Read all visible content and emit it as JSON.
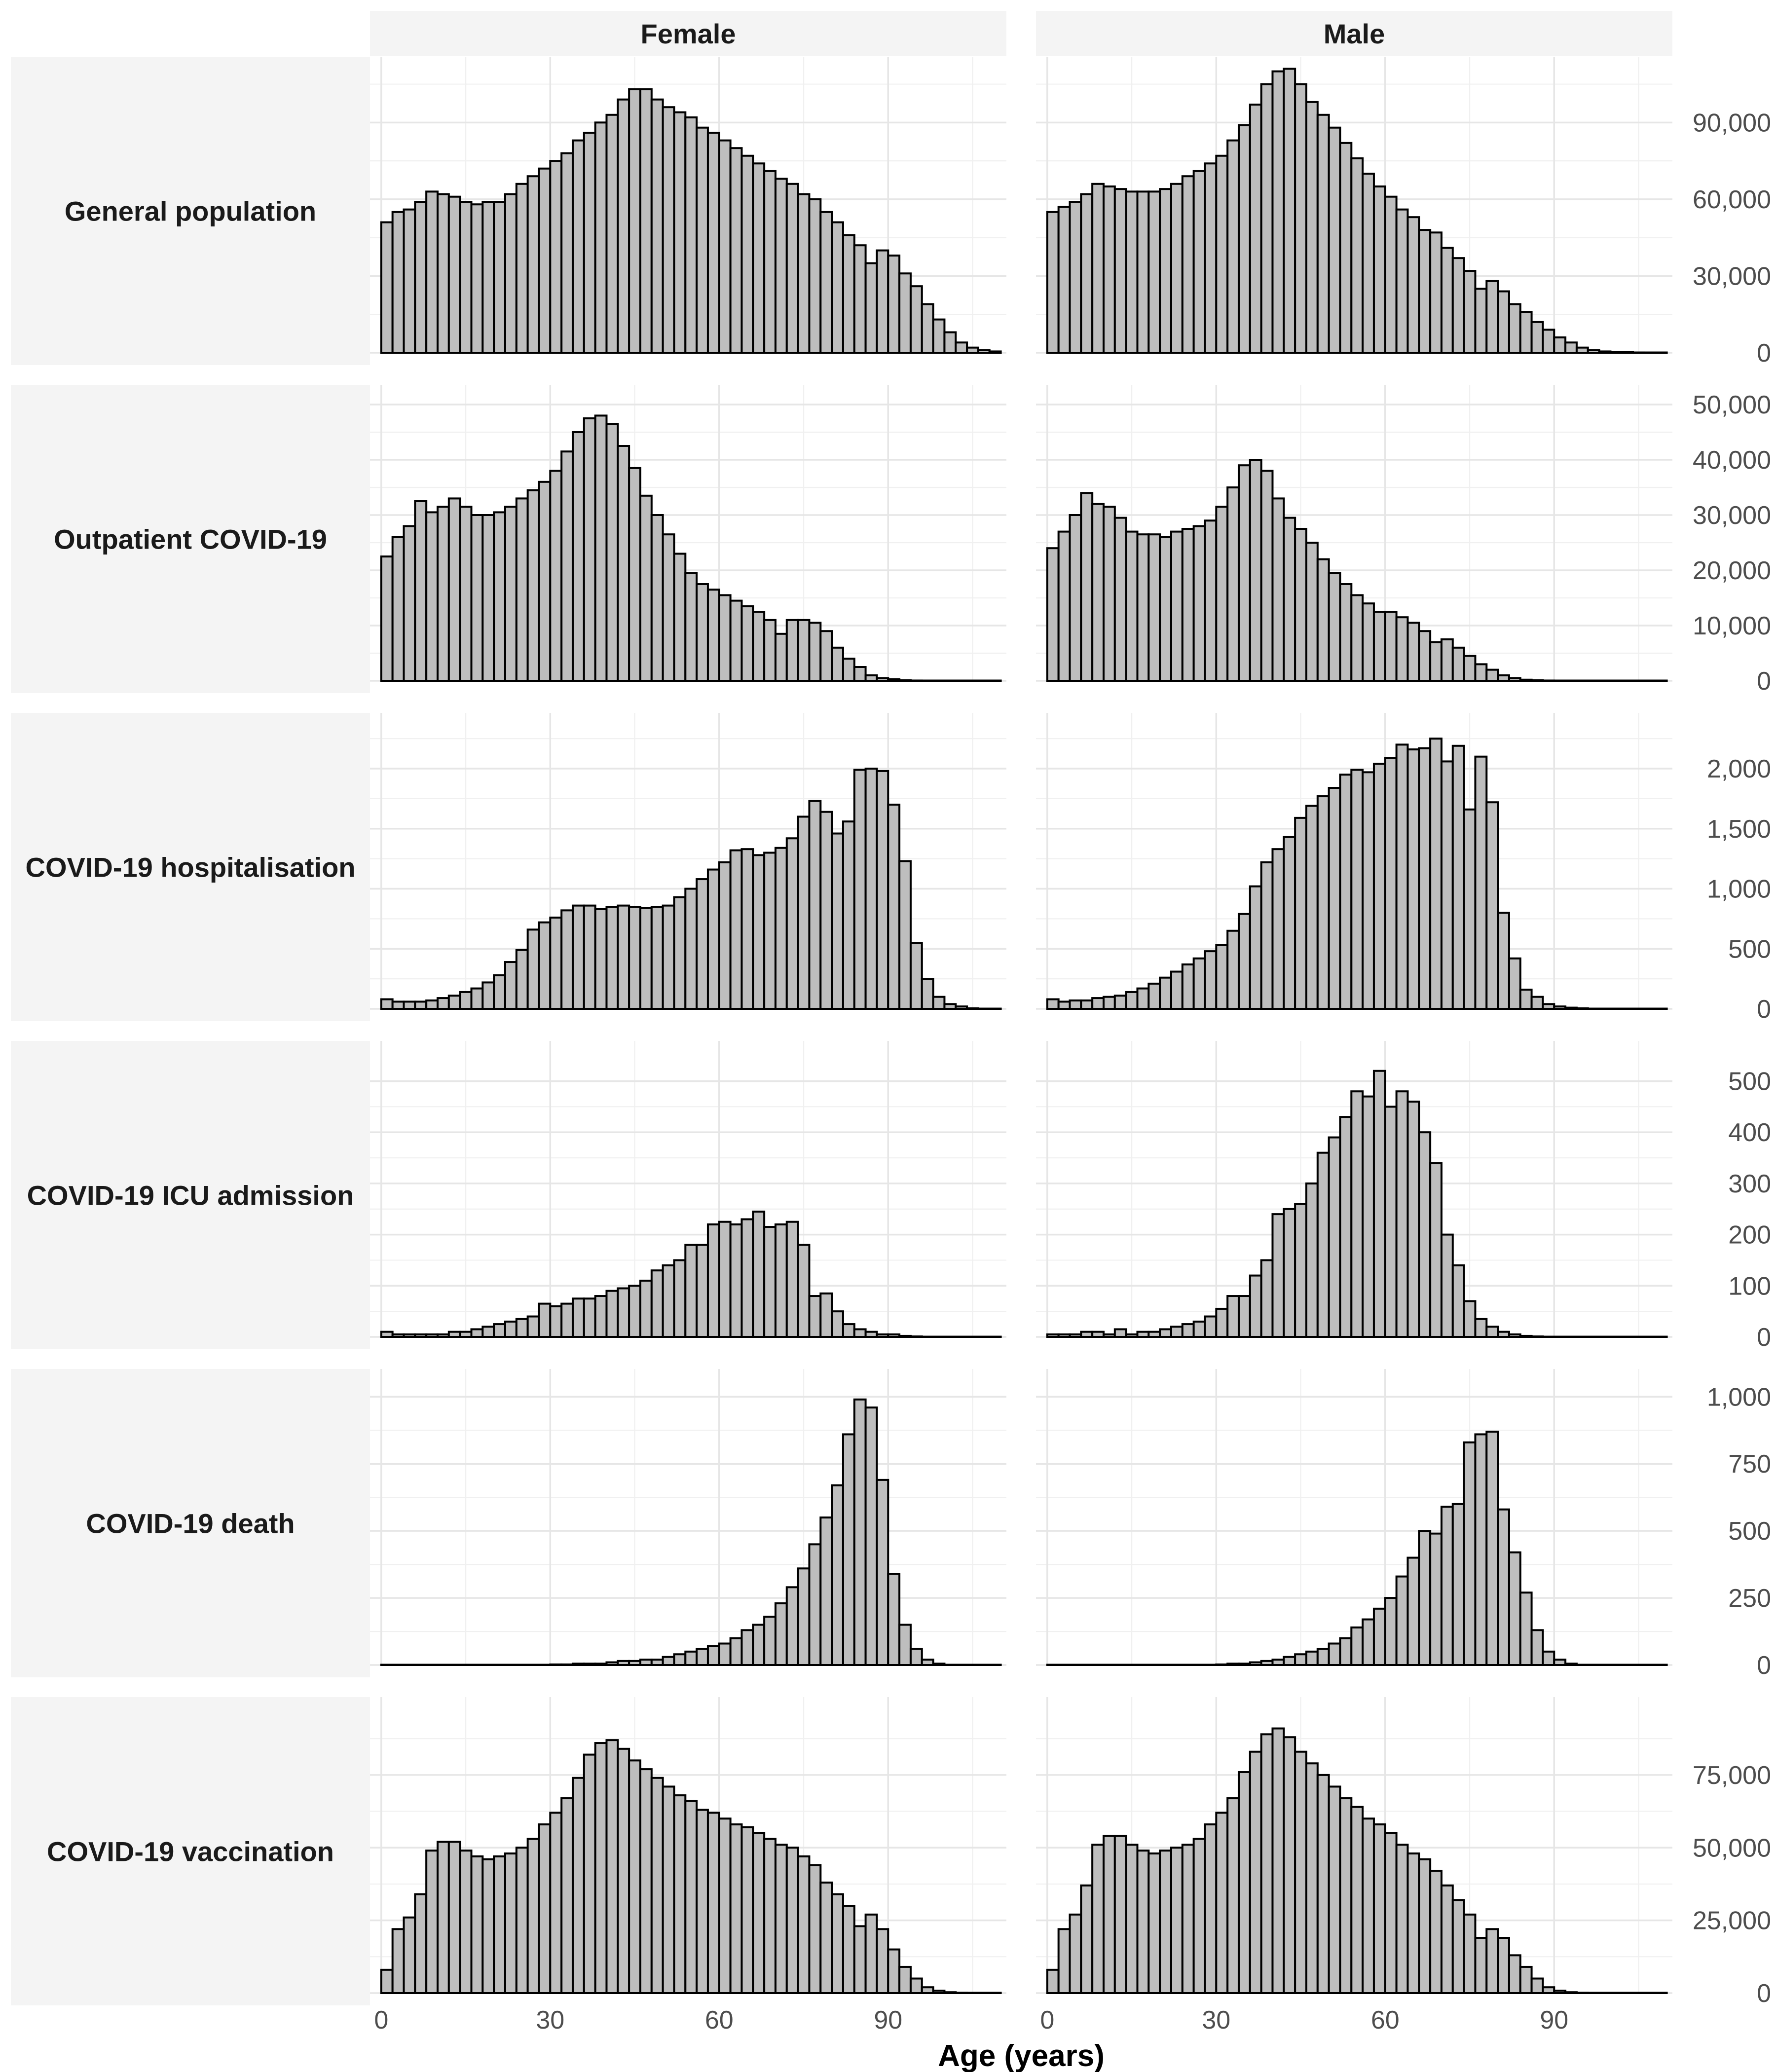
{
  "chart_data": {
    "type": "bar",
    "title": "",
    "xlabel": "Age (years)",
    "x_ticks": [
      0,
      30,
      60,
      90
    ],
    "xlim": [
      -2,
      111
    ],
    "bin_width": 2,
    "bin_starts": [
      0,
      2,
      4,
      6,
      8,
      10,
      12,
      14,
      16,
      18,
      20,
      22,
      24,
      26,
      28,
      30,
      32,
      34,
      36,
      38,
      40,
      42,
      44,
      46,
      48,
      50,
      52,
      54,
      56,
      58,
      60,
      62,
      64,
      66,
      68,
      70,
      72,
      74,
      76,
      78,
      80,
      82,
      84,
      86,
      88,
      90,
      92,
      94,
      96,
      98,
      100,
      102,
      104,
      106,
      108
    ],
    "columns": [
      "Female",
      "Male"
    ],
    "rows": [
      {
        "label": "General population",
        "ylim": [
          0,
          108000
        ],
        "y_ticks": [
          0,
          30000,
          60000,
          90000
        ],
        "y_tick_labels": [
          "0",
          "30,000",
          "60,000",
          "90,000"
        ],
        "series": [
          {
            "name": "Female",
            "values": [
              51000,
              55000,
              56000,
              59000,
              63000,
              62000,
              61000,
              59000,
              58000,
              59000,
              59000,
              62000,
              66000,
              69000,
              72000,
              75000,
              78000,
              83000,
              86000,
              90000,
              93000,
              99000,
              103000,
              103000,
              99000,
              96000,
              94000,
              92000,
              88000,
              86000,
              83000,
              80000,
              77000,
              74000,
              71000,
              68000,
              66000,
              62000,
              60000,
              55000,
              51000,
              46000,
              42000,
              35000,
              40000,
              38000,
              31000,
              26000,
              19000,
              13000,
              8000,
              4000,
              2000,
              1000,
              500
            ]
          },
          {
            "name": "Male",
            "values": [
              55000,
              57000,
              59000,
              62000,
              66000,
              65000,
              64000,
              63000,
              63000,
              63000,
              64000,
              66000,
              69000,
              71000,
              74000,
              77000,
              83000,
              89000,
              97000,
              105000,
              110000,
              111000,
              105000,
              98000,
              93000,
              88000,
              82000,
              76000,
              70000,
              65000,
              61000,
              56000,
              53000,
              48000,
              47000,
              41000,
              37000,
              32000,
              25000,
              28000,
              24000,
              19000,
              16000,
              12000,
              9000,
              6000,
              4000,
              2000,
              1000,
              500,
              300,
              200,
              100,
              50,
              20
            ]
          }
        ]
      },
      {
        "label": "Outpatient COVID-19",
        "ylim": [
          0,
          50000
        ],
        "y_ticks": [
          0,
          10000,
          20000,
          30000,
          40000,
          50000
        ],
        "y_tick_labels": [
          "0",
          "10,000",
          "20,000",
          "30,000",
          "40,000",
          "50,000"
        ],
        "series": [
          {
            "name": "Female",
            "values": [
              22500,
              26000,
              28000,
              32500,
              30500,
              31500,
              33000,
              31500,
              30000,
              30000,
              30500,
              31500,
              33000,
              34500,
              36000,
              38000,
              41500,
              45000,
              47500,
              48000,
              46500,
              42500,
              38500,
              33500,
              30000,
              26500,
              23000,
              19500,
              17500,
              16500,
              15500,
              14500,
              13500,
              12500,
              11000,
              8500,
              11000,
              11000,
              10500,
              9000,
              6000,
              4000,
              2500,
              1000,
              500,
              300,
              100,
              50,
              20,
              10,
              5,
              2,
              1,
              0,
              0
            ]
          },
          {
            "name": "Male",
            "values": [
              24000,
              27000,
              30000,
              34000,
              32000,
              31500,
              29500,
              27000,
              26500,
              26500,
              26000,
              27000,
              27500,
              28000,
              29000,
              31500,
              35000,
              39000,
              40000,
              38000,
              33000,
              29500,
              27500,
              25000,
              22000,
              19500,
              17500,
              15500,
              14000,
              12500,
              12500,
              11500,
              10500,
              9000,
              7000,
              7500,
              6000,
              4500,
              3000,
              2000,
              1000,
              500,
              200,
              100,
              50,
              20,
              10,
              5,
              2,
              1,
              0,
              0,
              0,
              0,
              0
            ]
          }
        ]
      },
      {
        "label": "COVID-19 hospitalisation",
        "ylim": [
          0,
          2300
        ],
        "y_ticks": [
          0,
          500,
          1000,
          1500,
          2000
        ],
        "y_tick_labels": [
          "0",
          "500",
          "1,000",
          "1,500",
          "2,000"
        ],
        "series": [
          {
            "name": "Female",
            "values": [
              80,
              60,
              60,
              60,
              70,
              90,
              110,
              140,
              170,
              220,
              280,
              390,
              490,
              660,
              720,
              760,
              820,
              860,
              860,
              830,
              850,
              860,
              850,
              840,
              850,
              860,
              930,
              1000,
              1080,
              1160,
              1220,
              1320,
              1330,
              1280,
              1300,
              1340,
              1420,
              1600,
              1730,
              1640,
              1460,
              1560,
              1990,
              2000,
              1980,
              1700,
              1230,
              550,
              250,
              100,
              40,
              20,
              5,
              0,
              0
            ]
          },
          {
            "name": "Male",
            "values": [
              80,
              60,
              70,
              70,
              90,
              100,
              110,
              140,
              170,
              210,
              260,
              310,
              370,
              420,
              480,
              530,
              650,
              790,
              1020,
              1220,
              1330,
              1430,
              1590,
              1690,
              1770,
              1840,
              1950,
              1990,
              1970,
              2040,
              2090,
              2200,
              2160,
              2170,
              2250,
              2060,
              2190,
              1660,
              2100,
              1720,
              800,
              420,
              160,
              100,
              40,
              20,
              10,
              5,
              2,
              0,
              0,
              0,
              0,
              0,
              0
            ]
          }
        ]
      },
      {
        "label": "COVID-19 ICU admission",
        "ylim": [
          0,
          540
        ],
        "y_ticks": [
          0,
          100,
          200,
          300,
          400,
          500
        ],
        "y_tick_labels": [
          "0",
          "100",
          "200",
          "300",
          "400",
          "500"
        ],
        "series": [
          {
            "name": "Female",
            "values": [
              10,
              5,
              5,
              5,
              5,
              5,
              10,
              10,
              15,
              20,
              25,
              30,
              35,
              40,
              65,
              60,
              65,
              75,
              75,
              80,
              90,
              95,
              100,
              110,
              130,
              140,
              150,
              180,
              180,
              220,
              225,
              220,
              230,
              245,
              215,
              220,
              225,
              180,
              80,
              85,
              50,
              25,
              15,
              10,
              5,
              5,
              2,
              1,
              0,
              0,
              0,
              0,
              0,
              0,
              0
            ]
          },
          {
            "name": "Male",
            "values": [
              5,
              5,
              5,
              10,
              10,
              5,
              15,
              5,
              10,
              10,
              15,
              20,
              25,
              30,
              40,
              55,
              80,
              80,
              120,
              150,
              240,
              250,
              260,
              300,
              360,
              390,
              430,
              480,
              470,
              520,
              450,
              480,
              460,
              400,
              340,
              200,
              140,
              70,
              35,
              20,
              10,
              5,
              2,
              1,
              0,
              0,
              0,
              0,
              0,
              0,
              0,
              0,
              0,
              0,
              0
            ]
          }
        ]
      },
      {
        "label": "COVID-19 death",
        "ylim": [
          0,
          1030
        ],
        "y_ticks": [
          0,
          250,
          500,
          750,
          1000
        ],
        "y_tick_labels": [
          "0",
          "250",
          "500",
          "750",
          "1,000"
        ],
        "series": [
          {
            "name": "Female",
            "values": [
              0,
              0,
              0,
              0,
              0,
              0,
              0,
              0,
              0,
              0,
              0,
              0,
              0,
              0,
              0,
              2,
              2,
              5,
              5,
              5,
              10,
              15,
              15,
              20,
              20,
              30,
              40,
              50,
              60,
              70,
              80,
              100,
              130,
              150,
              180,
              230,
              290,
              360,
              450,
              550,
              670,
              860,
              990,
              960,
              690,
              340,
              150,
              60,
              20,
              5,
              0,
              0,
              0,
              0,
              0
            ]
          },
          {
            "name": "Male",
            "values": [
              0,
              0,
              0,
              0,
              0,
              0,
              0,
              0,
              0,
              0,
              0,
              0,
              0,
              0,
              0,
              2,
              5,
              5,
              10,
              15,
              20,
              30,
              40,
              50,
              60,
              80,
              100,
              140,
              170,
              210,
              250,
              330,
              400,
              500,
              490,
              590,
              600,
              830,
              860,
              870,
              580,
              420,
              270,
              130,
              50,
              20,
              5,
              0,
              0,
              0,
              0,
              0,
              0,
              0,
              0
            ]
          }
        ]
      },
      {
        "label": "COVID-19 vaccination",
        "ylim": [
          0,
          95000
        ],
        "y_ticks": [
          0,
          25000,
          50000,
          75000
        ],
        "y_tick_labels": [
          "0",
          "25,000",
          "50,000",
          "75,000"
        ],
        "series": [
          {
            "name": "Female",
            "values": [
              8000,
              22000,
              26000,
              34000,
              49000,
              52000,
              52000,
              49000,
              47000,
              46000,
              47000,
              48000,
              50000,
              53000,
              58000,
              62000,
              67000,
              74000,
              82000,
              86000,
              87000,
              84000,
              80000,
              77000,
              74000,
              71000,
              68000,
              66000,
              63000,
              62000,
              60000,
              58000,
              57000,
              55000,
              53000,
              51000,
              50000,
              47000,
              44000,
              38000,
              34000,
              30000,
              23000,
              27000,
              22000,
              15000,
              9000,
              5000,
              2000,
              800,
              300,
              100,
              50,
              20,
              0
            ]
          },
          {
            "name": "Male",
            "values": [
              8000,
              22000,
              27000,
              37000,
              51000,
              54000,
              54000,
              51000,
              49000,
              48000,
              49000,
              50000,
              51000,
              53000,
              58000,
              62000,
              67000,
              76000,
              83000,
              89000,
              91000,
              88000,
              83000,
              79000,
              75000,
              71000,
              67000,
              64000,
              60000,
              58000,
              55000,
              51000,
              48000,
              46000,
              42000,
              37000,
              32000,
              27000,
              19000,
              22000,
              19000,
              13000,
              9000,
              5000,
              2000,
              800,
              300,
              100,
              50,
              20,
              10,
              5,
              2,
              1,
              0
            ]
          }
        ]
      }
    ]
  }
}
